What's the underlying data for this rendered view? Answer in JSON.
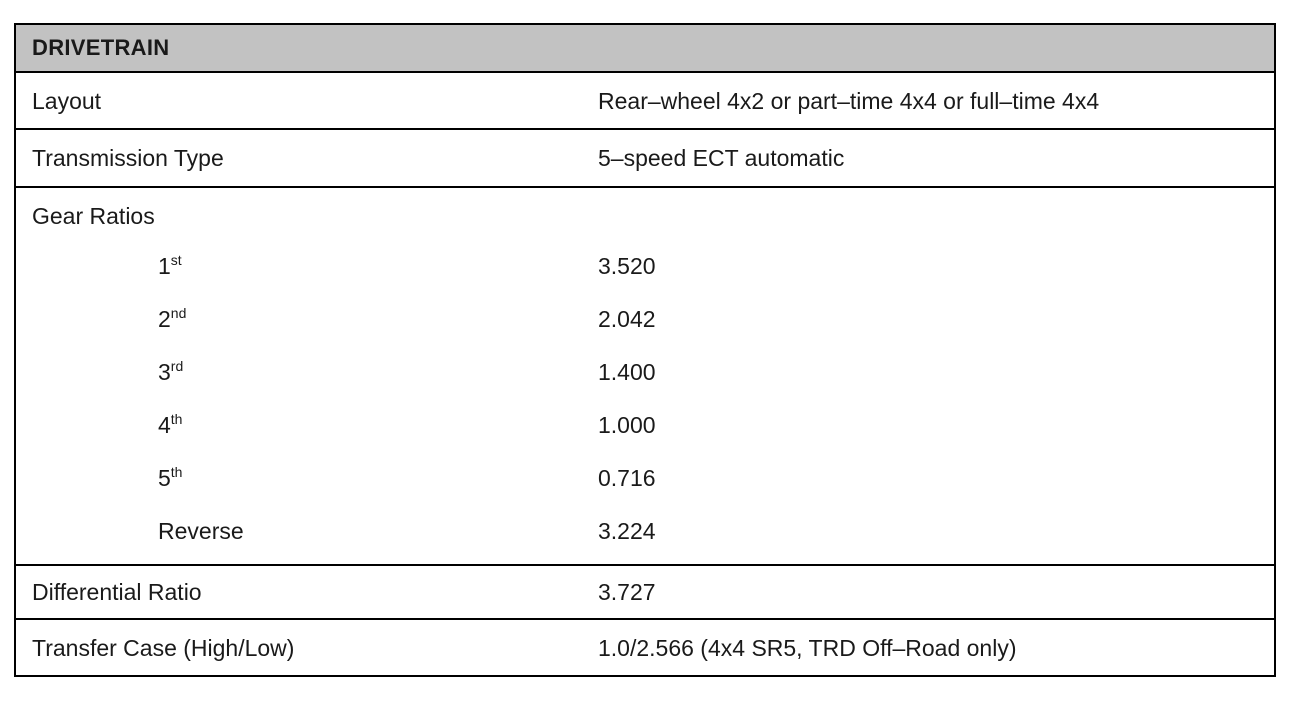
{
  "colors": {
    "header_background": "#c2c2c2",
    "border": "#000000",
    "text": "#1a1a1a",
    "page_background": "#ffffff"
  },
  "table": {
    "header": "DRIVETRAIN",
    "rows_top": [
      {
        "label": "Layout",
        "value": "Rear–wheel 4x2 or part–time 4x4 or full–time 4x4"
      },
      {
        "label": "Transmission Type",
        "value": "5–speed ECT automatic"
      }
    ],
    "gear_section": {
      "title": "Gear Ratios",
      "gears": [
        {
          "name": "1",
          "suffix": "st",
          "value": "3.520"
        },
        {
          "name": "2",
          "suffix": "nd",
          "value": "2.042"
        },
        {
          "name": "3",
          "suffix": "rd",
          "value": "1.400"
        },
        {
          "name": "4",
          "suffix": "th",
          "value": "1.000"
        },
        {
          "name": "5",
          "suffix": "th",
          "value": "0.716"
        },
        {
          "name": "Reverse",
          "suffix": "",
          "value": "3.224"
        }
      ]
    },
    "rows_bottom": [
      {
        "label": "Differential Ratio",
        "value": "3.727"
      },
      {
        "label": "Transfer Case (High/Low)",
        "value": "1.0/2.566 (4x4 SR5, TRD Off–Road only)"
      }
    ]
  }
}
